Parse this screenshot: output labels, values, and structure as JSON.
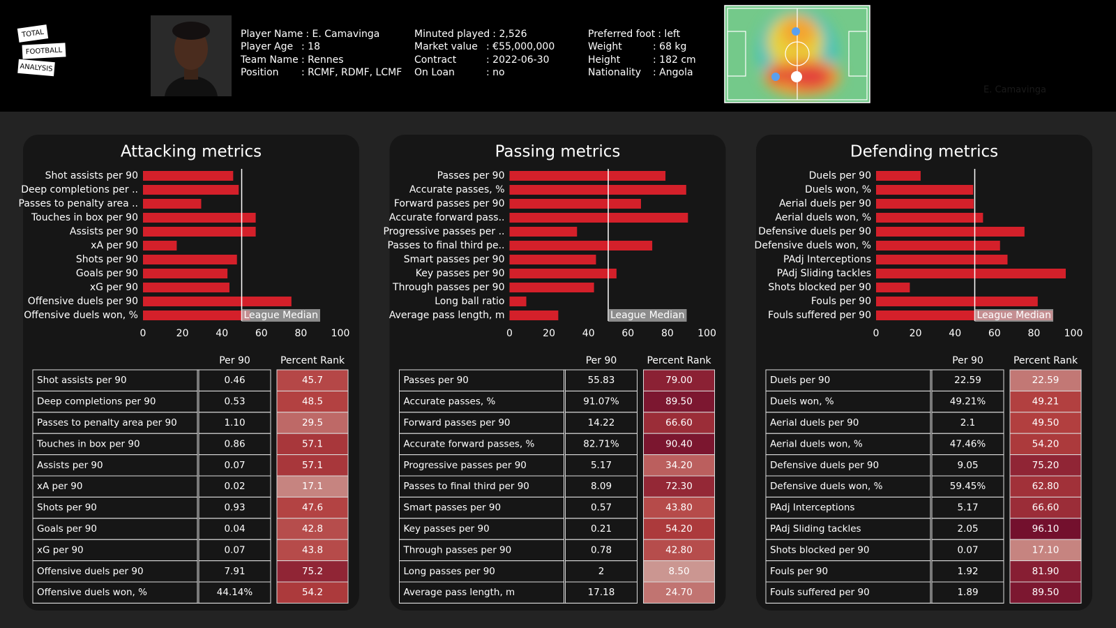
{
  "header": {
    "logo": [
      "TOTAL",
      "FOOTBALL",
      "ANALYSIS"
    ],
    "info": [
      [
        {
          "label": "Player Name",
          "value": ": E. Camavinga"
        },
        {
          "label": "Player Age",
          "value": ": 18"
        },
        {
          "label": "Team Name",
          "value": ": Rennes"
        },
        {
          "label": "Position",
          "value": ": RCMF, RDMF, LCMF"
        }
      ],
      [
        {
          "label": "Minuted played",
          "value": ": 2,526"
        },
        {
          "label": "Market value",
          "value": ": €55,000,000"
        },
        {
          "label": "Contract",
          "value": ": 2022-06-30"
        },
        {
          "label": "On Loan",
          "value": ": no"
        }
      ],
      [
        {
          "label": "Preferred foot",
          "value": ": left"
        },
        {
          "label": "Weight",
          "value": ": 68 kg"
        },
        {
          "label": "Height",
          "value": ": 182 cm"
        },
        {
          "label": "Nationality",
          "value": ": Angola"
        }
      ]
    ],
    "watermark": "E. Camavinga"
  },
  "chart_data": [
    {
      "type": "bar",
      "title": "Attacking metrics",
      "categories": [
        "Shot assists per 90",
        "Deep completions per ..",
        "Passes to penalty area ..",
        "Touches in box per 90",
        "Assists per 90",
        "xA per 90",
        "Shots per 90",
        "Goals per 90",
        "xG per 90",
        "Offensive duels per 90",
        "Offensive duels won, %"
      ],
      "values": [
        45.7,
        48.5,
        29.5,
        57.1,
        57.1,
        17.1,
        47.6,
        42.8,
        43.8,
        75.2,
        54.2
      ],
      "color": "#d4202a",
      "xlim": [
        0,
        100
      ],
      "xticks": [
        0,
        20,
        40,
        60,
        80,
        100
      ],
      "reference_line": {
        "value": 50,
        "label": "League Median"
      }
    },
    {
      "type": "bar",
      "title": "Passing metrics",
      "categories": [
        "Passes per 90",
        "Accurate passes, %",
        "Forward passes per 90",
        "Accurate forward pass..",
        "Progressive passes per ..",
        "Passes to final third pe..",
        "Smart passes per 90",
        "Key passes per 90",
        "Through passes per 90",
        "Long ball ratio",
        "Average pass length, m"
      ],
      "values": [
        79.0,
        89.5,
        66.6,
        90.4,
        34.2,
        72.3,
        43.8,
        54.2,
        42.8,
        8.5,
        24.7
      ],
      "color": "#d4202a",
      "xlim": [
        0,
        100
      ],
      "xticks": [
        0,
        20,
        40,
        60,
        80,
        100
      ],
      "reference_line": {
        "value": 50,
        "label": "League Median"
      }
    },
    {
      "type": "bar",
      "title": "Defending metrics",
      "categories": [
        "Duels per 90",
        "Duels won, %",
        "Aerial duels per 90",
        "Aerial duels won, %",
        "Defensive duels per 90",
        "Defensive duels won, %",
        "PAdj Interceptions",
        "PAdj Sliding tackles",
        "Shots blocked per 90",
        "Fouls per 90",
        "Fouls suffered per 90"
      ],
      "values": [
        22.59,
        49.21,
        49.5,
        54.2,
        75.2,
        62.8,
        66.6,
        96.1,
        17.1,
        81.9,
        89.5
      ],
      "color": "#d4202a",
      "xlim": [
        0,
        100
      ],
      "xticks": [
        0,
        20,
        40,
        60,
        80,
        100
      ],
      "reference_line": {
        "value": 50,
        "label": "League Median"
      }
    }
  ],
  "tables": [
    {
      "columns": [
        "Per 90",
        "Percent Rank"
      ],
      "rows": [
        [
          "Shot assists per 90",
          "0.46",
          "45.7"
        ],
        [
          "Deep completions per 90",
          "0.53",
          "48.5"
        ],
        [
          "Passes to penalty area per 90",
          "1.10",
          "29.5"
        ],
        [
          "Touches in box per 90",
          "0.86",
          "57.1"
        ],
        [
          "Assists per 90",
          "0.07",
          "57.1"
        ],
        [
          "xA per 90",
          "0.02",
          "17.1"
        ],
        [
          "Shots per 90",
          "0.93",
          "47.6"
        ],
        [
          "Goals per 90",
          "0.04",
          "42.8"
        ],
        [
          "xG per 90",
          "0.07",
          "43.8"
        ],
        [
          "Offensive duels per 90",
          "7.91",
          "75.2"
        ],
        [
          "Offensive duels won, %",
          "44.14%",
          "54.2"
        ]
      ]
    },
    {
      "columns": [
        "Per 90",
        "Percent Rank"
      ],
      "rows": [
        [
          "Passes per 90",
          "55.83",
          "79.00"
        ],
        [
          "Accurate passes, %",
          "91.07%",
          "89.50"
        ],
        [
          "Forward passes per 90",
          "14.22",
          "66.60"
        ],
        [
          "Accurate forward passes, %",
          "82.71%",
          "90.40"
        ],
        [
          "Progressive passes per 90",
          "5.17",
          "34.20"
        ],
        [
          "Passes to final third per 90",
          "8.09",
          "72.30"
        ],
        [
          "Smart passes per 90",
          "0.57",
          "43.80"
        ],
        [
          "Key passes per 90",
          "0.21",
          "54.20"
        ],
        [
          "Through passes per 90",
          "0.78",
          "42.80"
        ],
        [
          "Long passes per 90",
          "2",
          "8.50"
        ],
        [
          "Average pass length, m",
          "17.18",
          "24.70"
        ]
      ]
    },
    {
      "columns": [
        "Per 90",
        "Percent Rank"
      ],
      "rows": [
        [
          "Duels per 90",
          "22.59",
          "22.59"
        ],
        [
          "Duels won, %",
          "49.21%",
          "49.21"
        ],
        [
          "Aerial duels per 90",
          "2.1",
          "49.50"
        ],
        [
          "Aerial duels won, %",
          "47.46%",
          "54.20"
        ],
        [
          "Defensive duels per 90",
          "9.05",
          "75.20"
        ],
        [
          "Defensive duels won, %",
          "59.45%",
          "62.80"
        ],
        [
          "PAdj Interceptions",
          "5.17",
          "66.60"
        ],
        [
          "PAdj Sliding tackles",
          "2.05",
          "96.10"
        ],
        [
          "Shots blocked per 90",
          "0.07",
          "17.10"
        ],
        [
          "Fouls per 90",
          "1.92",
          "81.90"
        ],
        [
          "Fouls suffered per 90",
          "1.89",
          "89.50"
        ]
      ]
    }
  ]
}
